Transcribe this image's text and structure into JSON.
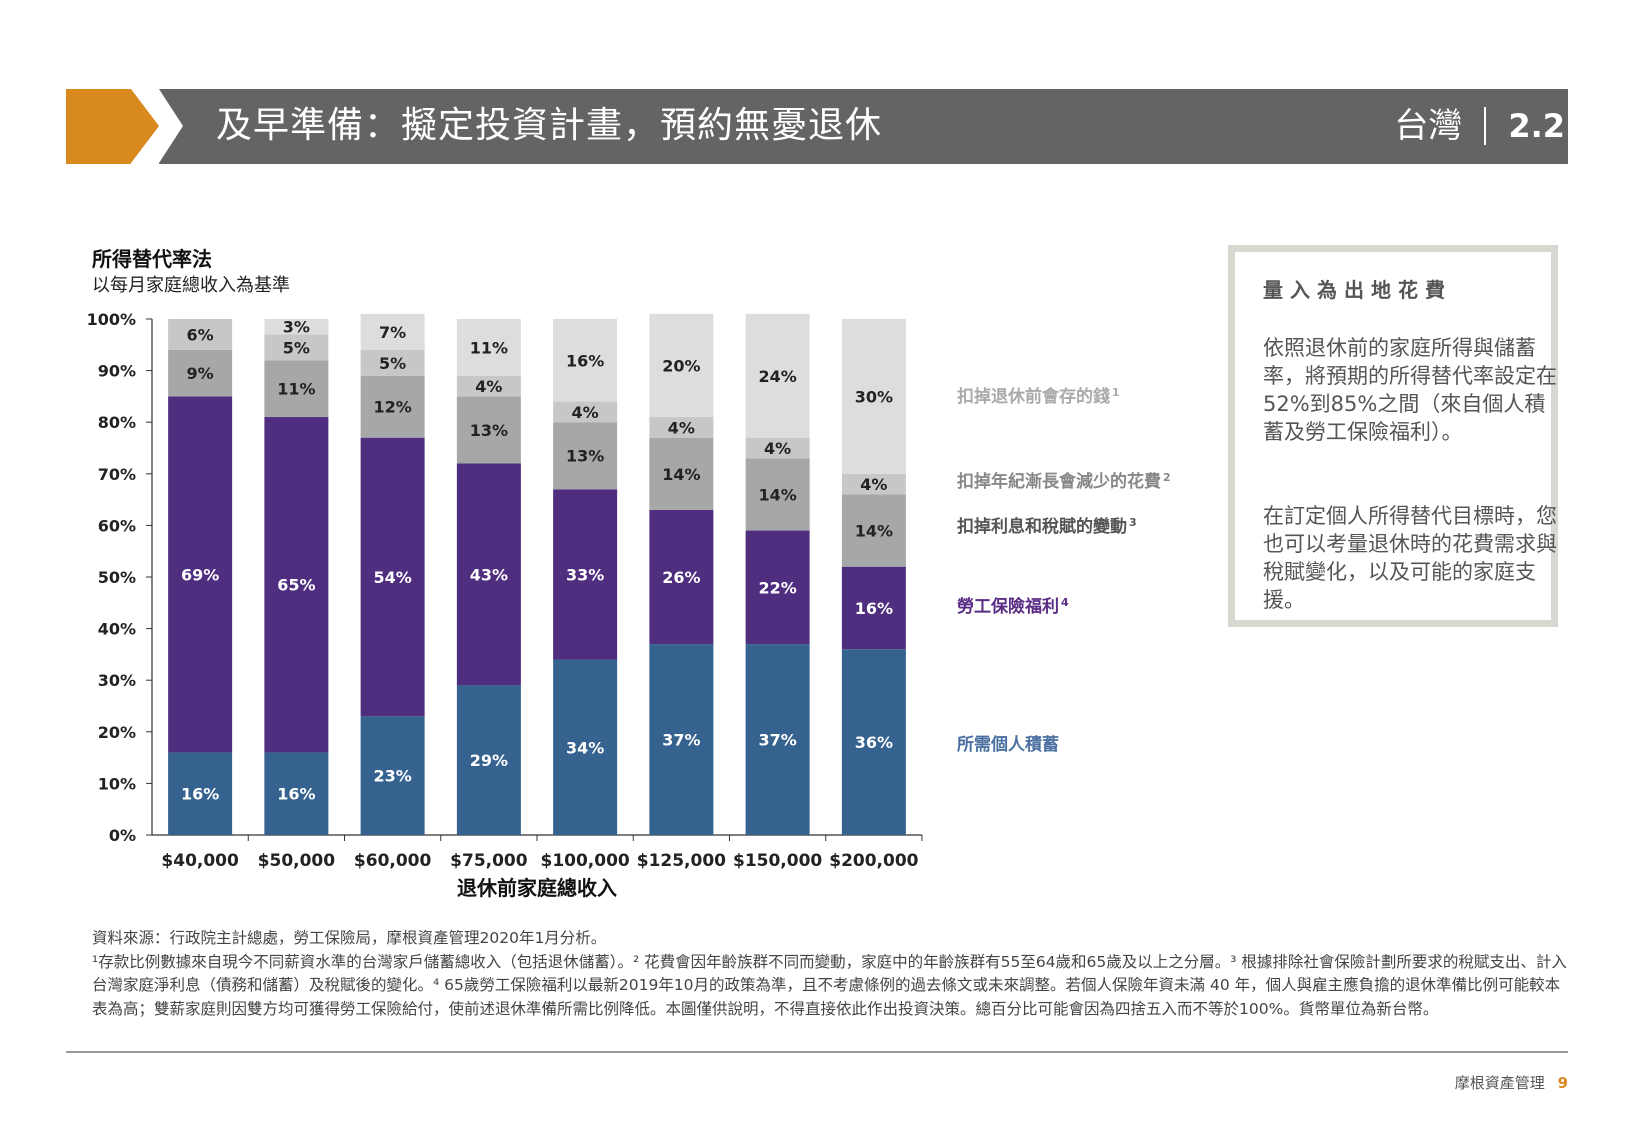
{
  "header": {
    "title": "及早準備：擬定投資計畫，預約無憂退休",
    "region": "台灣",
    "section": "2.2",
    "accent_color": "#d98a1f",
    "bar_color": "#636466"
  },
  "chart_heading": {
    "title": "所得替代率法",
    "subtitle": "以每月家庭總收入為基準"
  },
  "chart_data": {
    "type": "bar",
    "stacked": true,
    "categories": [
      "$40,000",
      "$50,000",
      "$60,000",
      "$75,000",
      "$100,000",
      "$125,000",
      "$150,000",
      "$200,000"
    ],
    "xlabel": "退休前家庭總收入",
    "ylabel": "",
    "ylim": [
      0,
      100
    ],
    "yticks": [
      "0%",
      "10%",
      "20%",
      "30%",
      "40%",
      "50%",
      "60%",
      "70%",
      "80%",
      "90%",
      "100%"
    ],
    "grid": false,
    "series": [
      {
        "name": "所需個人積蓄",
        "color": "#35628f",
        "label_color": "#ffffff",
        "values": [
          16,
          16,
          23,
          29,
          34,
          37,
          37,
          36
        ]
      },
      {
        "name": "勞工保險福利",
        "sup": "4",
        "color": "#4f2d7f",
        "label_color": "#ffffff",
        "values": [
          69,
          65,
          54,
          43,
          33,
          26,
          22,
          16
        ]
      },
      {
        "name": "扣掉利息和稅賦的變動",
        "sup": "3",
        "color": "#a6a7a9",
        "label_color": "#222222",
        "values": [
          9,
          11,
          12,
          13,
          13,
          14,
          14,
          14
        ]
      },
      {
        "name": "扣掉年紀漸長會減少的花費",
        "sup": "2",
        "color": "#c6c7c8",
        "label_color": "#222222",
        "values": [
          6,
          5,
          5,
          4,
          4,
          4,
          4,
          4
        ]
      },
      {
        "name": "扣掉退休前會存的錢",
        "sup": "1",
        "color": "#dcdddf",
        "label_color": "#222222",
        "values": [
          0,
          3,
          7,
          11,
          16,
          20,
          24,
          30
        ]
      }
    ],
    "legend_placement": "right",
    "legend_colors": [
      "#4a6fa0",
      "#5a2d85",
      "#555555",
      "#888888",
      "#aaaaaa"
    ]
  },
  "info_box": {
    "heading": "量入為出地花費",
    "paragraph1": "依照退休前的家庭所得與儲蓄率，將預期的所得替代率設定在52%到85%之間（來自個人積蓄及勞工保險福利）。",
    "paragraph2": "在訂定個人所得替代目標時，您也可以考量退休時的花費需求與稅賦變化，以及可能的家庭支援。"
  },
  "footnotes": {
    "source": "資料來源：行政院主計總處，勞工保險局，摩根資產管理2020年1月分析。",
    "body": "¹存款比例數據來自現今不同薪資水準的台灣家戶儲蓄總收入（包括退休儲蓄）。² 花費會因年齡族群不同而變動，家庭中的年齡族群有55至64歲和65歲及以上之分層。³ 根據排除社會保險計劃所要求的稅賦支出、計入台灣家庭淨利息（債務和儲蓄）及稅賦後的變化。⁴ 65歲勞工保險福利以最新2019年10月的政策為準，且不考慮條例的過去條文或未來調整。若個人保險年資未滿 40 年，個人與雇主應負擔的退休準備比例可能較本表為高；雙薪家庭則因雙方均可獲得勞工保險給付，使前述退休準備所需比例降低。本圖僅供說明，不得直接依此作出投資決策。總百分比可能會因為四捨五入而不等於100%。貨幣單位為新台幣。"
  },
  "footer": {
    "brand": "摩根資產管理",
    "page": "9"
  }
}
